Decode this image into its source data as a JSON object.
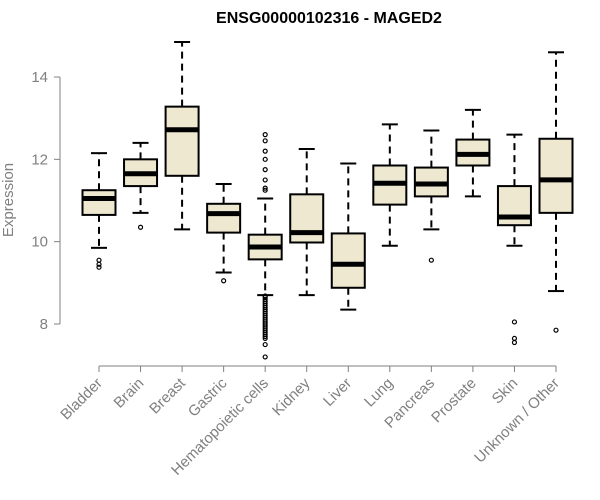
{
  "chart_data": {
    "type": "boxplot",
    "title": "ENSG00000102316 - MAGED2",
    "ylabel": "Expression",
    "xlabel": "",
    "ylim": [
      7.0,
      15.0
    ],
    "yticks": [
      8,
      10,
      12,
      14
    ],
    "grid": false,
    "colors": {
      "box_fill": "#EEE8D0",
      "box_stroke": "#000000",
      "axis": "#808080"
    },
    "categories": [
      "Bladder",
      "Brain",
      "Breast",
      "Gastric",
      "Hematopoietic cells",
      "Kidney",
      "Liver",
      "Lung",
      "Pancreas",
      "Prostate",
      "Skin",
      "Unknown / Other"
    ],
    "boxes": [
      {
        "category": "Bladder",
        "min": 9.85,
        "q1": 10.65,
        "median": 11.05,
        "q3": 11.25,
        "max": 12.15,
        "outliers": [
          9.55,
          9.45,
          9.38
        ]
      },
      {
        "category": "Brain",
        "min": 10.7,
        "q1": 11.35,
        "median": 11.65,
        "q3": 12.0,
        "max": 12.4,
        "outliers": [
          10.35
        ]
      },
      {
        "category": "Breast",
        "min": 10.3,
        "q1": 11.6,
        "median": 12.72,
        "q3": 13.28,
        "max": 14.85,
        "outliers": []
      },
      {
        "category": "Gastric",
        "min": 9.25,
        "q1": 10.22,
        "median": 10.68,
        "q3": 10.92,
        "max": 11.4,
        "outliers": [
          9.05
        ]
      },
      {
        "category": "Hematopoietic cells",
        "min": 8.7,
        "q1": 9.57,
        "median": 9.87,
        "q3": 10.17,
        "max": 11.05,
        "outliers": [
          12.6,
          12.45,
          12.2,
          12.0,
          11.75,
          11.5,
          11.3,
          11.25,
          8.68,
          8.65,
          8.6,
          8.55,
          8.5,
          8.45,
          8.4,
          8.35,
          8.3,
          8.25,
          8.2,
          8.15,
          8.1,
          8.05,
          8.0,
          7.95,
          7.9,
          7.85,
          7.8,
          7.75,
          7.7,
          7.65,
          7.5,
          7.2
        ]
      },
      {
        "category": "Kidney",
        "min": 8.7,
        "q1": 9.98,
        "median": 10.22,
        "q3": 11.15,
        "max": 12.25,
        "outliers": []
      },
      {
        "category": "Liver",
        "min": 8.35,
        "q1": 8.88,
        "median": 9.45,
        "q3": 10.2,
        "max": 11.9,
        "outliers": []
      },
      {
        "category": "Lung",
        "min": 9.9,
        "q1": 10.9,
        "median": 11.42,
        "q3": 11.85,
        "max": 12.85,
        "outliers": []
      },
      {
        "category": "Pancreas",
        "min": 10.3,
        "q1": 11.1,
        "median": 11.4,
        "q3": 11.8,
        "max": 12.7,
        "outliers": [
          9.55
        ]
      },
      {
        "category": "Prostate",
        "min": 11.1,
        "q1": 11.85,
        "median": 12.12,
        "q3": 12.48,
        "max": 13.2,
        "outliers": []
      },
      {
        "category": "Skin",
        "min": 9.9,
        "q1": 10.4,
        "median": 10.6,
        "q3": 11.35,
        "max": 12.6,
        "outliers": [
          8.05,
          7.65,
          7.55
        ]
      },
      {
        "category": "Unknown / Other",
        "min": 8.8,
        "q1": 10.7,
        "median": 11.5,
        "q3": 12.5,
        "max": 14.6,
        "outliers": [
          7.85
        ]
      }
    ]
  }
}
